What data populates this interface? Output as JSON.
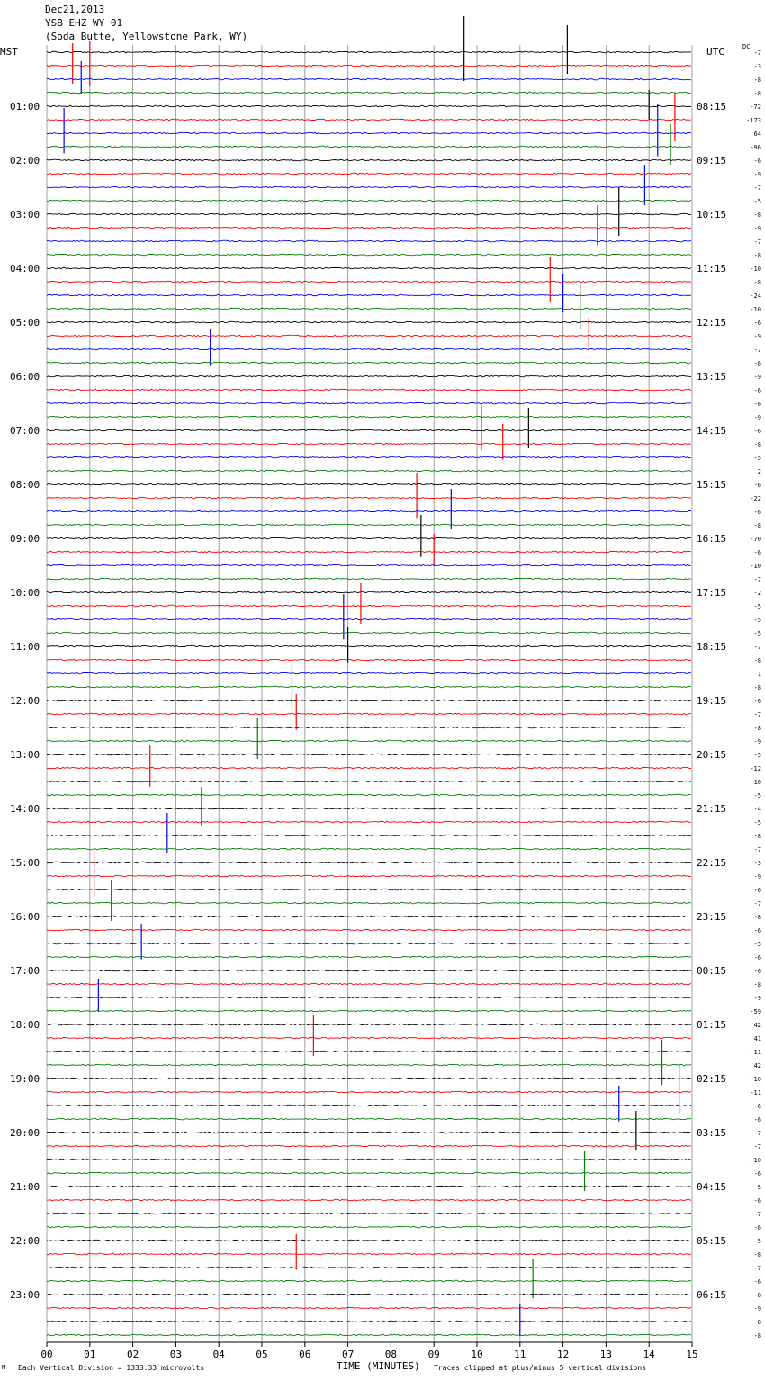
{
  "header": {
    "date": "Dec21,2013",
    "station": "YSB EHZ WY 01",
    "location": "(Soda Butte, Yellowstone Park, WY)"
  },
  "left_timezone": "MST",
  "right_timezone": "UTC",
  "dc_label": "DC",
  "footer": {
    "scale_note": "Each Vertical Division = 1333.33 microvolts",
    "clip_note": "Traces clipped at plus/minus 5 vertical divisions",
    "corner_mark": "M"
  },
  "colors": {
    "trace_cycle": [
      "#000000",
      "#ff0000",
      "#0000ff",
      "#008000"
    ],
    "grid": "#a0a0a0"
  },
  "chart_data": {
    "type": "line",
    "title": "YSB EHZ WY 01",
    "xlabel": "TIME (MINUTES)",
    "xlim": [
      0,
      15
    ],
    "x_ticks": [
      "00",
      "01",
      "02",
      "03",
      "04",
      "05",
      "06",
      "07",
      "08",
      "09",
      "10",
      "11",
      "12",
      "13",
      "14",
      "15"
    ],
    "rows_per_hour": 4,
    "row_count": 96,
    "left_hour_labels": [
      "01:00",
      "02:00",
      "03:00",
      "04:00",
      "05:00",
      "06:00",
      "07:00",
      "08:00",
      "09:00",
      "10:00",
      "11:00",
      "12:00",
      "13:00",
      "14:00",
      "15:00",
      "16:00",
      "17:00",
      "18:00",
      "19:00",
      "20:00",
      "21:00",
      "22:00",
      "23:00"
    ],
    "right_hour_labels": [
      "08:15",
      "09:15",
      "10:15",
      "11:15",
      "12:15",
      "13:15",
      "14:15",
      "15:15",
      "16:15",
      "17:15",
      "18:15",
      "19:15",
      "20:15",
      "21:15",
      "22:15",
      "23:15",
      "00:15",
      "01:15",
      "02:15",
      "03:15",
      "04:15",
      "05:15",
      "06:15"
    ],
    "dc_offsets": [
      "-7",
      "-3",
      "-8",
      "-8",
      "-72",
      "-173",
      "64",
      "-96",
      "-6",
      "-9",
      "-7",
      "-5",
      "-8",
      "-9",
      "-7",
      "-8",
      "-10",
      "-8",
      "-24",
      "-10",
      "-6",
      "-9",
      "-7",
      "-6",
      "-9",
      "-6",
      "-6",
      "-9",
      "-6",
      "-8",
      "-5",
      "2",
      "-6",
      "-22",
      "-6",
      "-8",
      "-70",
      "-6",
      "-10",
      "-7",
      "-2",
      "-5",
      "-5",
      "-5",
      "-7",
      "-8",
      "1",
      "-8",
      "-6",
      "-7",
      "-8",
      "-9",
      "-5",
      "-12",
      "10",
      "-5",
      "-4",
      "-5",
      "-8",
      "-7",
      "-3",
      "-9",
      "-6",
      "-7",
      "-8",
      "-6",
      "-5",
      "-6",
      "-6",
      "-8",
      "-9",
      "-59",
      "42",
      "41",
      "-11",
      "42",
      "-10",
      "-11",
      "-6",
      "-6",
      "-7",
      "-7",
      "-10",
      "-6",
      "-5",
      "-6",
      "-7",
      "-6",
      "-5",
      "-8",
      "-7",
      "-6",
      "-8",
      "-9",
      "-8",
      "-8"
    ],
    "events": [
      {
        "row": 0,
        "minute": 9.7,
        "amp": 40
      },
      {
        "row": 0,
        "minute": 12.1,
        "amp": 30
      },
      {
        "row": 1,
        "minute": 0.6,
        "amp": 25
      },
      {
        "row": 1,
        "minute": 1.0,
        "amp": 28
      },
      {
        "row": 2,
        "minute": 0.8,
        "amp": 20
      },
      {
        "row": 4,
        "minute": 14.0,
        "amp": 18
      },
      {
        "row": 5,
        "minute": 14.6,
        "amp": 30
      },
      {
        "row": 6,
        "minute": 0.4,
        "amp": 28
      },
      {
        "row": 6,
        "minute": 14.2,
        "amp": 32
      },
      {
        "row": 7,
        "minute": 14.5,
        "amp": 25
      },
      {
        "row": 10,
        "minute": 13.9,
        "amp": 25
      },
      {
        "row": 12,
        "minute": 13.3,
        "amp": 30
      },
      {
        "row": 13,
        "minute": 12.8,
        "amp": 25
      },
      {
        "row": 17,
        "minute": 11.7,
        "amp": 28
      },
      {
        "row": 18,
        "minute": 12.0,
        "amp": 24
      },
      {
        "row": 19,
        "minute": 12.4,
        "amp": 28
      },
      {
        "row": 21,
        "minute": 12.6,
        "amp": 20
      },
      {
        "row": 22,
        "minute": 3.8,
        "amp": 22
      },
      {
        "row": 28,
        "minute": 10.1,
        "amp": 28
      },
      {
        "row": 28,
        "minute": 11.2,
        "amp": 25
      },
      {
        "row": 29,
        "minute": 10.6,
        "amp": 22
      },
      {
        "row": 33,
        "minute": 8.6,
        "amp": 28
      },
      {
        "row": 34,
        "minute": 9.4,
        "amp": 25
      },
      {
        "row": 36,
        "minute": 8.7,
        "amp": 26
      },
      {
        "row": 37,
        "minute": 9.0,
        "amp": 20
      },
      {
        "row": 41,
        "minute": 7.3,
        "amp": 25
      },
      {
        "row": 42,
        "minute": 6.9,
        "amp": 28
      },
      {
        "row": 44,
        "minute": 7.0,
        "amp": 22
      },
      {
        "row": 47,
        "minute": 5.7,
        "amp": 30
      },
      {
        "row": 49,
        "minute": 5.8,
        "amp": 22
      },
      {
        "row": 51,
        "minute": 4.9,
        "amp": 25
      },
      {
        "row": 53,
        "minute": 2.4,
        "amp": 26
      },
      {
        "row": 56,
        "minute": 3.6,
        "amp": 24
      },
      {
        "row": 58,
        "minute": 2.8,
        "amp": 25
      },
      {
        "row": 61,
        "minute": 1.1,
        "amp": 28
      },
      {
        "row": 63,
        "minute": 1.5,
        "amp": 25
      },
      {
        "row": 66,
        "minute": 2.2,
        "amp": 22
      },
      {
        "row": 70,
        "minute": 1.2,
        "amp": 20
      },
      {
        "row": 73,
        "minute": 6.2,
        "amp": 25
      },
      {
        "row": 75,
        "minute": 14.3,
        "amp": 28
      },
      {
        "row": 77,
        "minute": 14.7,
        "amp": 30
      },
      {
        "row": 78,
        "minute": 13.3,
        "amp": 22
      },
      {
        "row": 80,
        "minute": 13.7,
        "amp": 24
      },
      {
        "row": 83,
        "minute": 12.5,
        "amp": 25
      },
      {
        "row": 89,
        "minute": 5.8,
        "amp": 22
      },
      {
        "row": 91,
        "minute": 11.3,
        "amp": 24
      },
      {
        "row": 94,
        "minute": 11.0,
        "amp": 20
      }
    ]
  }
}
